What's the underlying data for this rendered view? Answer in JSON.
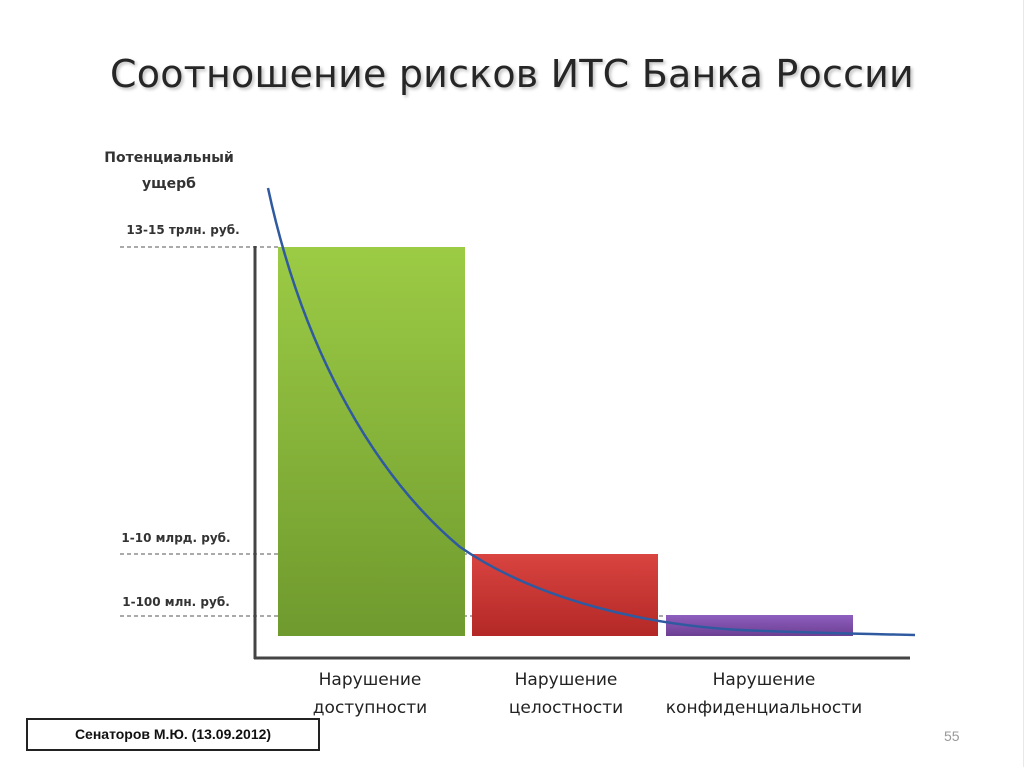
{
  "slide": {
    "title": "Соотношение рисков ИТС Банка России",
    "source": "Сенаторов М.Ю. (13.09.2012)",
    "page_number": "55"
  },
  "chart_data": {
    "type": "bar",
    "title": "Соотношение рисков ИТС Банка России",
    "ylabel_lines": [
      "Потенциальный",
      "ущерб"
    ],
    "categories": [
      [
        "Нарушение",
        "доступности"
      ],
      [
        "Нарушение",
        "целостности"
      ],
      [
        "Нарушение",
        "конфиденциальности"
      ]
    ],
    "levels": [
      "13-15 трлн. руб.",
      "1-10 млрд. руб.",
      "1-100 млн. руб."
    ],
    "bar_levels": [
      0,
      1,
      2
    ],
    "bar_colors": [
      "#8bb83c",
      "#c93330",
      "#7e4fa6"
    ],
    "curve_color": "#2f5aa0",
    "grid": "dashed reference lines at levels",
    "legend": "none"
  }
}
